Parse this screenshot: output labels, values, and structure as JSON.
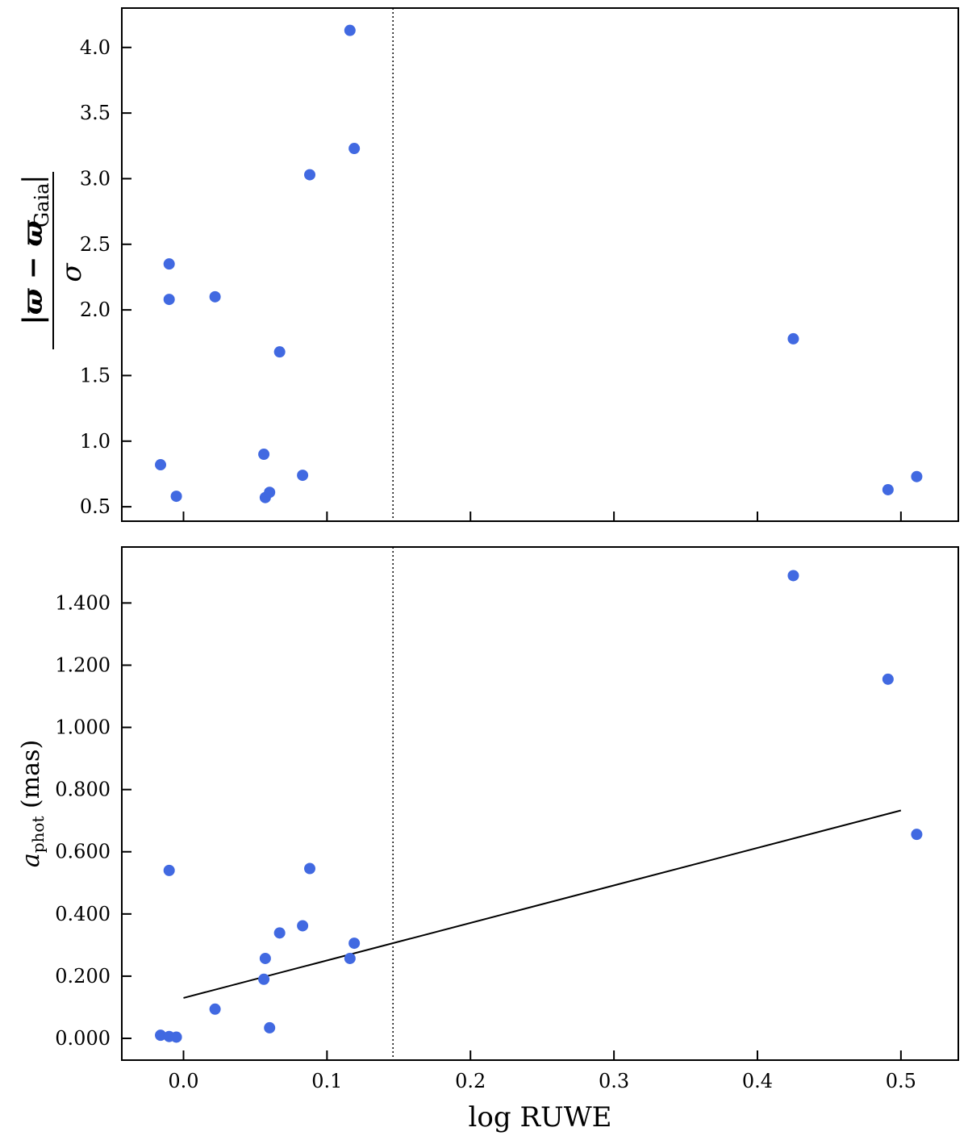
{
  "chart_data": [
    {
      "type": "scatter",
      "panel": "top",
      "ylabel": "|ϖ − ϖ_Gaia| / σ",
      "xlabel": "",
      "xlim": [
        -0.043,
        0.54
      ],
      "ylim": [
        0.39,
        4.3
      ],
      "yticks": [
        0.5,
        1.0,
        1.5,
        2.0,
        2.5,
        3.0,
        3.5,
        4.0
      ],
      "ytick_labels": [
        "0.5",
        "1.0",
        "1.5",
        "2.0",
        "2.5",
        "3.0",
        "3.5",
        "4.0"
      ],
      "xticks": [
        0.0,
        0.1,
        0.2,
        0.3,
        0.4,
        0.5
      ],
      "show_xtick_labels": false,
      "marker_color": "#4169e1",
      "vline_x": 0.146,
      "points": [
        {
          "x": 0.116,
          "y": 4.13
        },
        {
          "x": 0.119,
          "y": 3.23
        },
        {
          "x": 0.088,
          "y": 3.03
        },
        {
          "x": -0.01,
          "y": 2.35
        },
        {
          "x": -0.01,
          "y": 2.08
        },
        {
          "x": 0.022,
          "y": 2.1
        },
        {
          "x": 0.067,
          "y": 1.68
        },
        {
          "x": 0.425,
          "y": 1.78
        },
        {
          "x": -0.016,
          "y": 0.82
        },
        {
          "x": 0.056,
          "y": 0.9
        },
        {
          "x": 0.083,
          "y": 0.74
        },
        {
          "x": -0.005,
          "y": 0.58
        },
        {
          "x": 0.057,
          "y": 0.57
        },
        {
          "x": 0.06,
          "y": 0.61
        },
        {
          "x": 0.491,
          "y": 0.63
        },
        {
          "x": 0.511,
          "y": 0.73
        }
      ]
    },
    {
      "type": "scatter",
      "panel": "bottom",
      "ylabel_main": "a",
      "ylabel_sub": "phot",
      "ylabel_unit": "(mas)",
      "xlabel": "log RUWE",
      "xlim": [
        -0.043,
        0.54
      ],
      "ylim": [
        -0.07,
        1.58
      ],
      "yticks": [
        0.0,
        0.2,
        0.4,
        0.6,
        0.8,
        1.0,
        1.2,
        1.4
      ],
      "ytick_labels": [
        "0.000",
        "0.200",
        "0.400",
        "0.600",
        "0.800",
        "1.000",
        "1.200",
        "1.400"
      ],
      "xticks": [
        0.0,
        0.1,
        0.2,
        0.3,
        0.4,
        0.5
      ],
      "xtick_labels": [
        "0.0",
        "0.1",
        "0.2",
        "0.3",
        "0.4",
        "0.5"
      ],
      "marker_color": "#4169e1",
      "vline_x": 0.146,
      "fit_line": {
        "x": [
          0.0,
          0.5
        ],
        "y": [
          0.13,
          0.733
        ]
      },
      "points": [
        {
          "x": 0.425,
          "y": 1.488
        },
        {
          "x": 0.491,
          "y": 1.155
        },
        {
          "x": 0.511,
          "y": 0.656
        },
        {
          "x": -0.01,
          "y": 0.54
        },
        {
          "x": 0.088,
          "y": 0.546
        },
        {
          "x": 0.083,
          "y": 0.362
        },
        {
          "x": 0.067,
          "y": 0.339
        },
        {
          "x": 0.119,
          "y": 0.306
        },
        {
          "x": 0.057,
          "y": 0.257
        },
        {
          "x": 0.116,
          "y": 0.257
        },
        {
          "x": 0.056,
          "y": 0.19
        },
        {
          "x": 0.022,
          "y": 0.094
        },
        {
          "x": 0.06,
          "y": 0.034
        },
        {
          "x": -0.016,
          "y": 0.01
        },
        {
          "x": -0.01,
          "y": 0.006
        },
        {
          "x": -0.005,
          "y": 0.004
        }
      ]
    }
  ]
}
